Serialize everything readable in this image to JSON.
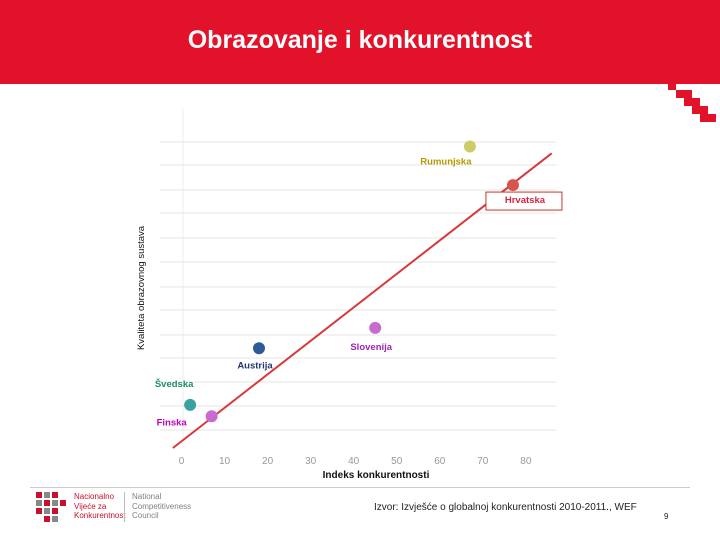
{
  "slide": {
    "title": "Obrazovanje i konkurentnost",
    "source": "Izvor: Izvješće o globalnoj konkurentnosti 2010-2011., WEF",
    "page_number": "9",
    "logo": {
      "hr_lines": [
        "Nacionalno",
        "Vijeće za",
        "Konkurentnost"
      ],
      "en_lines": [
        "National",
        "Competitiveness",
        "Council"
      ]
    }
  },
  "colors": {
    "header": "#e3122b",
    "trendline": "#d9383a",
    "grid": "#e4e4e4"
  },
  "chart_data": {
    "type": "scatter",
    "title": "",
    "xlabel": "Indeks konkurentnosti",
    "ylabel": "Kvaliteta obrazovnog sustava",
    "xlim": [
      -5,
      87
    ],
    "ylim": [
      0,
      15
    ],
    "x_ticks": [
      "0",
      "10",
      "20",
      "30",
      "40",
      "50",
      "60",
      "70",
      "80"
    ],
    "grid": "horizontal",
    "trendline": {
      "x": [
        -2,
        86
      ],
      "y": [
        0,
        13
      ]
    },
    "points": [
      {
        "label": "Rumunjska",
        "x": 67,
        "y": 13.3,
        "color": "#cccc66"
      },
      {
        "label": "Hrvatska",
        "x": 77,
        "y": 11.6,
        "color": "#d9534f"
      },
      {
        "label": "Slovenija",
        "x": 45,
        "y": 5.3,
        "color": "#c76bd0"
      },
      {
        "label": "Austrija",
        "x": 18,
        "y": 4.4,
        "color": "#2e5b98"
      },
      {
        "label": "Švedska",
        "x": 2,
        "y": 1.9,
        "color": "#3aa0a0"
      },
      {
        "label": "Finska",
        "x": 7,
        "y": 1.4,
        "color": "#c76bd0"
      }
    ],
    "label_colors": {
      "Rumunjska": "#b59a00",
      "Hrvatska": "#d7263d",
      "Slovenija": "#9c27b0",
      "Austrija": "#1f3a6e",
      "Švedska": "#1f8f5f",
      "Finska": "#c000c0"
    }
  }
}
